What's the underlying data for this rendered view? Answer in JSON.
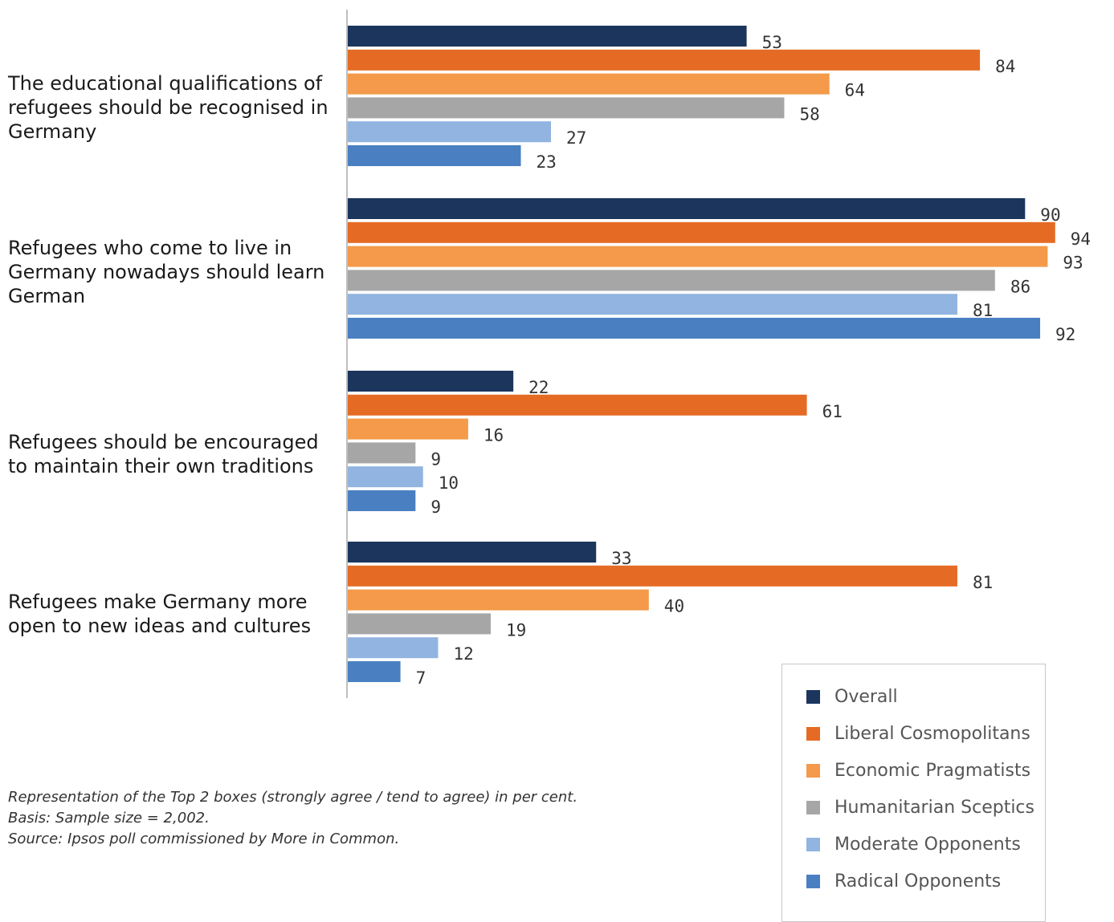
{
  "chart_data": {
    "type": "bar",
    "orientation": "horizontal",
    "categories": [
      "The educational qualifications of refugees should be recognised in Germany",
      "Refugees who come to live in Germany nowadays should learn German",
      "Refugees should be encouraged to maintain their own traditions",
      "Refugees make Germany more open to new ideas and cultures"
    ],
    "category_lines": [
      [
        "The educational qualifications of",
        "refugees should be recognised in",
        "Germany"
      ],
      [
        "Refugees who come to live in",
        "Germany nowadays should learn",
        "German"
      ],
      [
        "Refugees should be encouraged",
        "to maintain their own traditions"
      ],
      [
        "Refugees make Germany more",
        "open to new ideas and cultures"
      ]
    ],
    "series": [
      {
        "name": "Overall",
        "color": "#1b355d",
        "values": [
          53,
          90,
          22,
          33
        ]
      },
      {
        "name": "Liberal Cosmopolitans",
        "color": "#e56b25",
        "values": [
          84,
          94,
          61,
          81
        ]
      },
      {
        "name": "Economic Pragmatists",
        "color": "#f49a4a",
        "values": [
          64,
          93,
          16,
          40
        ]
      },
      {
        "name": "Humanitarian Sceptics",
        "color": "#a6a6a6",
        "values": [
          58,
          86,
          9,
          19
        ]
      },
      {
        "name": "Moderate Opponents",
        "color": "#91b4e0",
        "values": [
          27,
          81,
          10,
          12
        ]
      },
      {
        "name": "Radical Opponents",
        "color": "#4a80c2",
        "values": [
          23,
          92,
          9,
          7
        ]
      }
    ],
    "xlim": [
      0,
      100
    ],
    "grid": false,
    "legend_position": "bottom-right"
  },
  "notes": [
    "Representation of the Top 2 boxes (strongly agree / tend to agree) in per cent.",
    "Basis: Sample size = 2,002.",
    "Source: Ipsos poll commissioned by More in Common."
  ]
}
